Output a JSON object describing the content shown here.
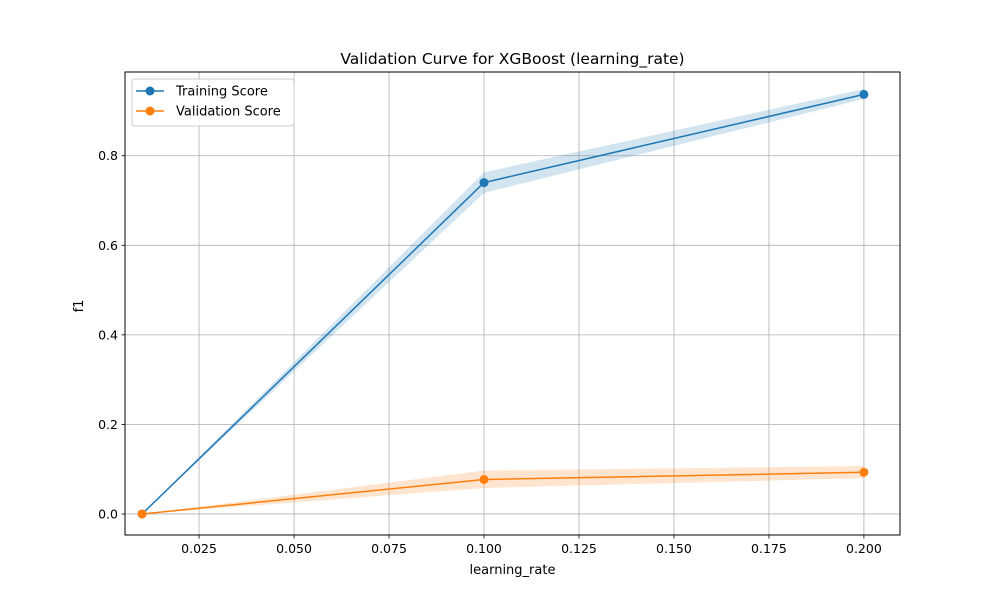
{
  "chart_data": {
    "type": "line",
    "title": "Validation Curve for XGBoost (learning_rate)",
    "xlabel": "learning_rate",
    "ylabel": "f1",
    "xlim": [
      0.0055,
      0.2095
    ],
    "ylim": [
      -0.047,
      0.987
    ],
    "xticks": [
      0.025,
      0.05,
      0.075,
      0.1,
      0.125,
      0.15,
      0.175,
      0.2
    ],
    "xtick_labels": [
      "0.025",
      "0.050",
      "0.075",
      "0.100",
      "0.125",
      "0.150",
      "0.175",
      "0.200"
    ],
    "yticks": [
      0.0,
      0.2,
      0.4,
      0.6,
      0.8
    ],
    "ytick_labels": [
      "0.0",
      "0.2",
      "0.4",
      "0.6",
      "0.8"
    ],
    "grid": true,
    "legend_position": "top-left",
    "x": [
      0.01,
      0.1,
      0.2
    ],
    "series": [
      {
        "name": "Training Score",
        "color": "#1f77b4",
        "band_color": "#1f77b4",
        "values": [
          0.0,
          0.74,
          0.937
        ],
        "lower": [
          0.0,
          0.717,
          0.927
        ],
        "upper": [
          0.0,
          0.763,
          0.949
        ]
      },
      {
        "name": "Validation Score",
        "color": "#ff7f0e",
        "band_color": "#ff7f0e",
        "values": [
          0.0,
          0.077,
          0.093
        ],
        "lower": [
          0.0,
          0.058,
          0.08
        ],
        "upper": [
          0.0,
          0.097,
          0.107
        ]
      }
    ]
  }
}
